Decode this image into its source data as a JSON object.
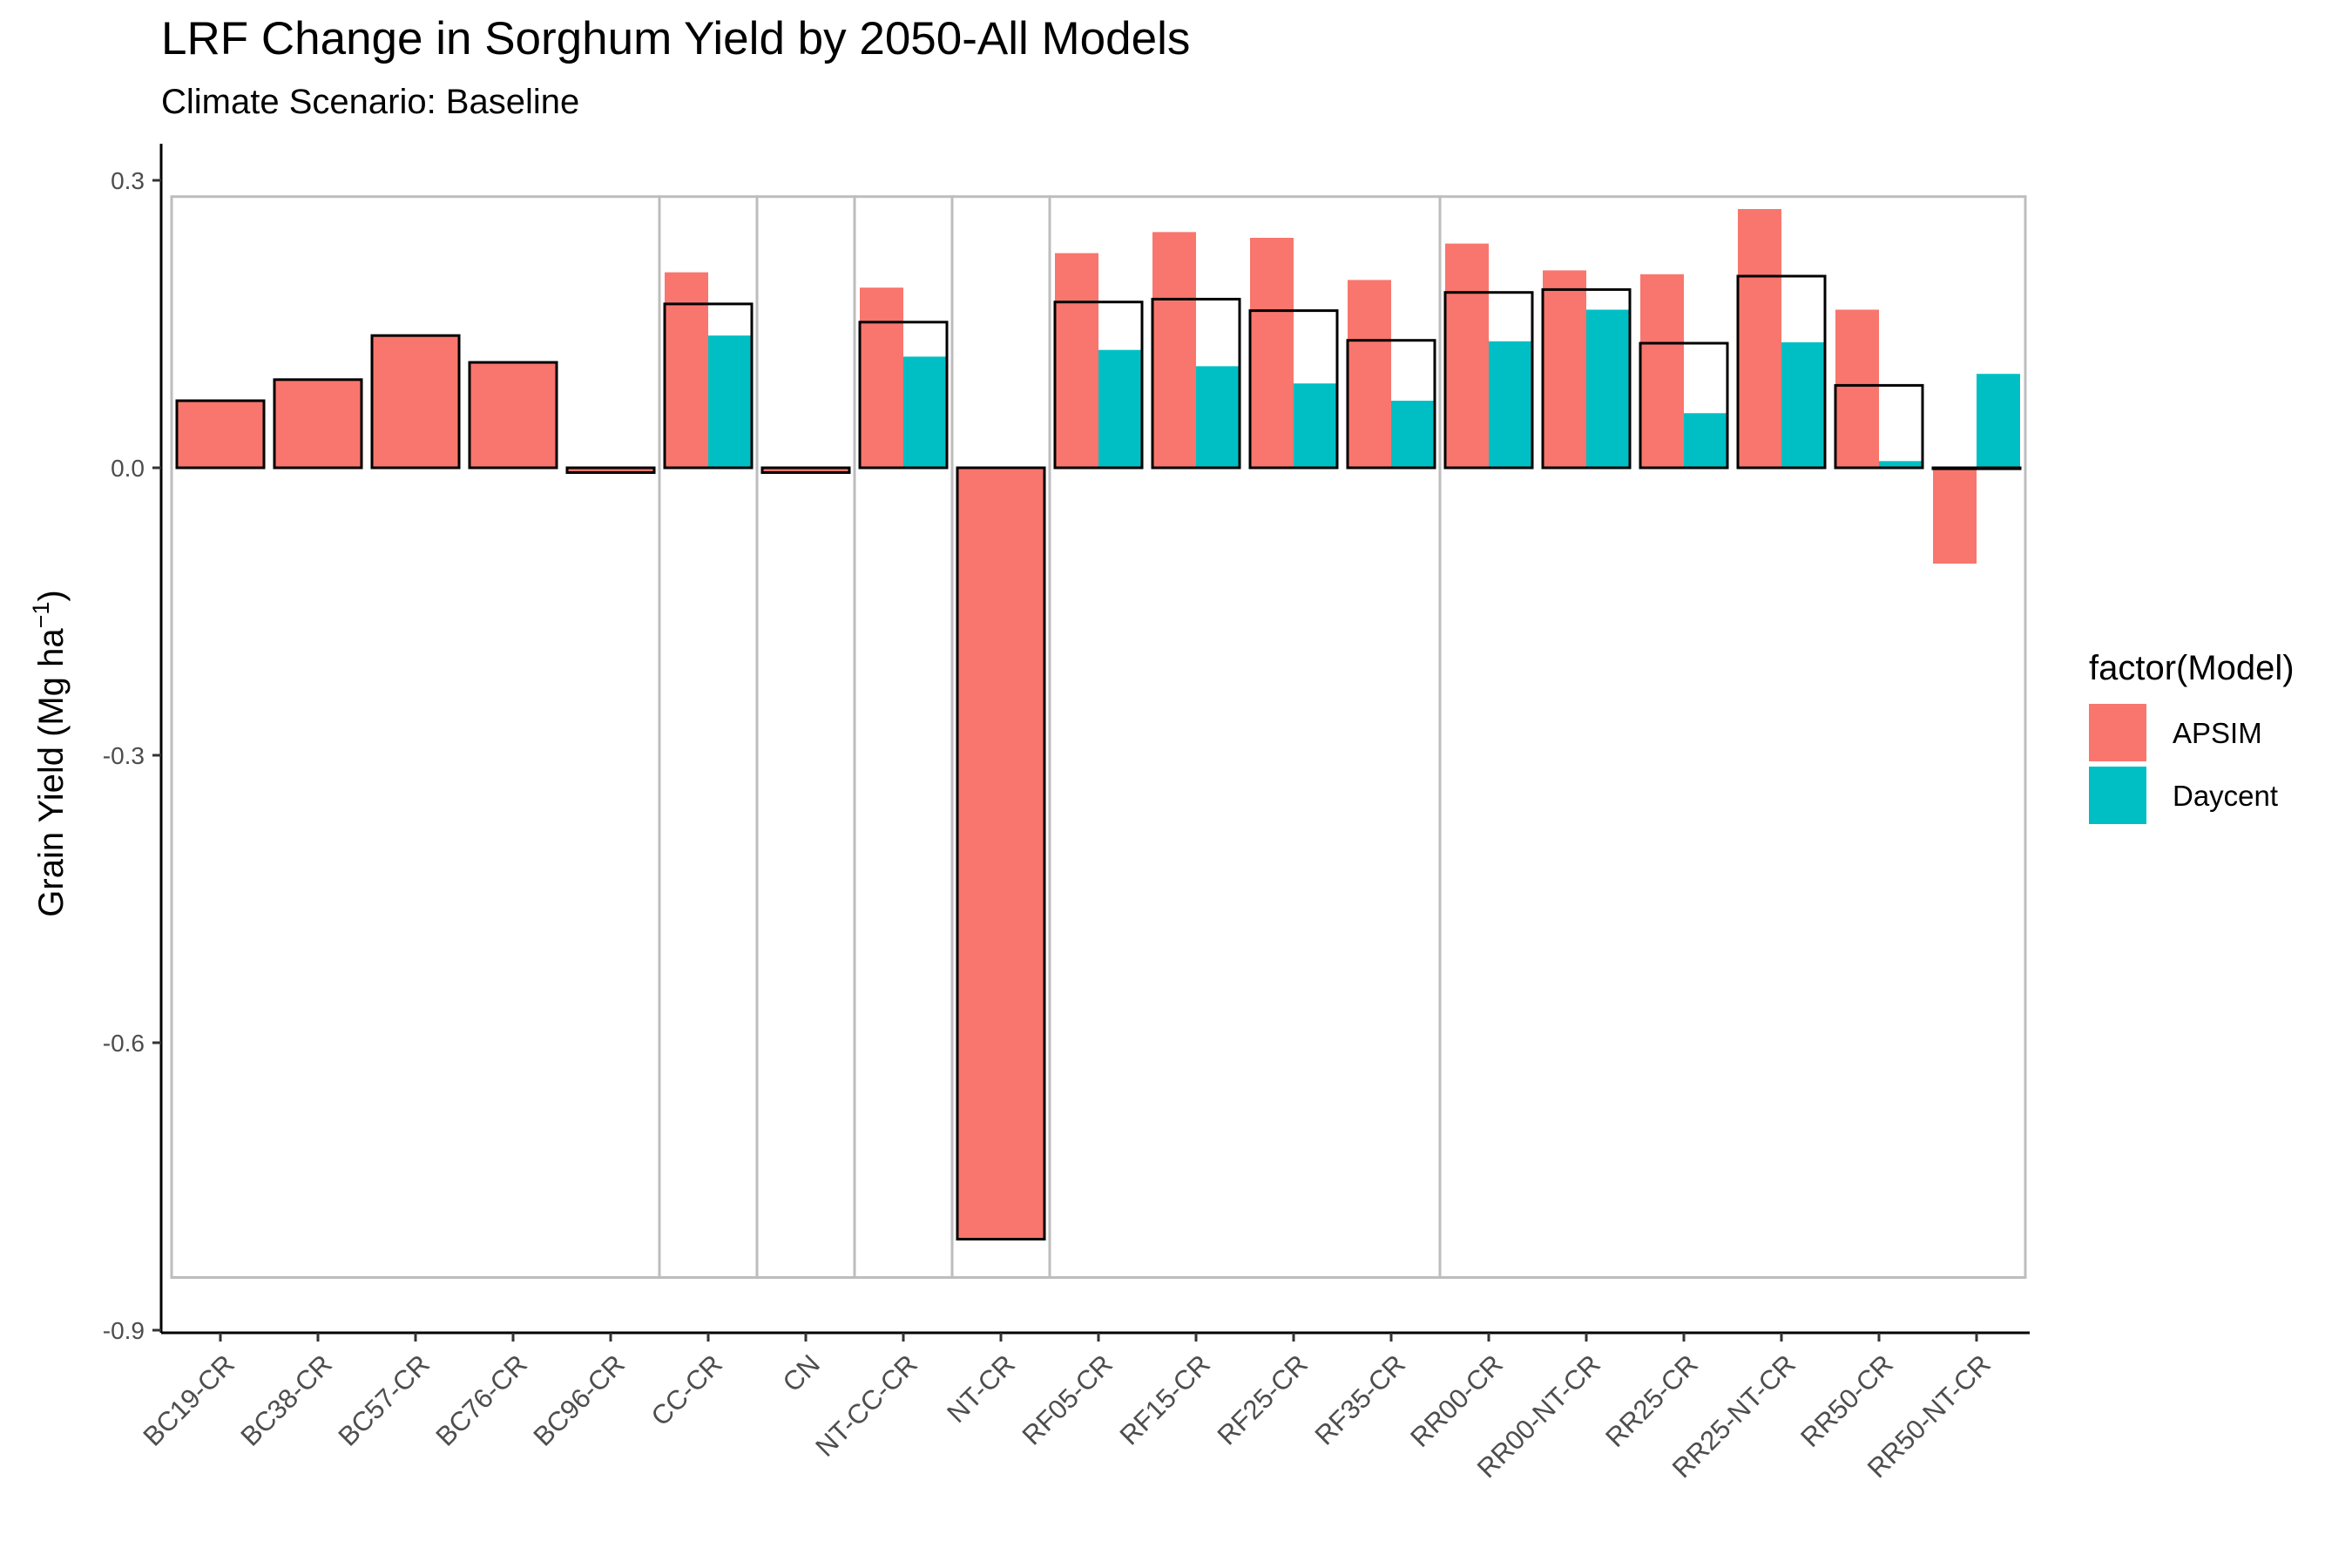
{
  "chart_data": {
    "type": "bar",
    "title": "LRF Change in Sorghum Yield by 2050-All Models",
    "subtitle": "Climate Scenario: Baseline",
    "ylabel": "Grain Yield (Mg ha",
    "ylabel_unit_exp": "−1",
    "ylabel_close": ")",
    "xlabel": "",
    "ylim": [
      -0.9,
      0.3
    ],
    "yticks": [
      -0.9,
      -0.6,
      -0.3,
      0.0,
      0.3
    ],
    "ytick_labels": [
      "-0.9",
      "-0.6",
      "-0.3",
      "0.0",
      "0.3"
    ],
    "categories": [
      "BC19-CR",
      "BC38-CR",
      "BC57-CR",
      "BC76-CR",
      "BC96-CR",
      "CC-CR",
      "CN",
      "NT-CC-CR",
      "NT-CR",
      "RF05-CR",
      "RF15-CR",
      "RF25-CR",
      "RF35-CR",
      "RR00-CR",
      "RR00-NT-CR",
      "RR25-CR",
      "RR25-NT-CR",
      "RR50-CR",
      "RR50-NT-CR"
    ],
    "series": [
      {
        "name": "APSIM",
        "color": "#F8766D",
        "values": [
          0.07,
          0.092,
          0.138,
          0.11,
          -0.005,
          0.204,
          -0.005,
          0.188,
          -0.805,
          0.224,
          0.246,
          0.24,
          0.196,
          0.234,
          0.206,
          0.202,
          0.27,
          0.165,
          -0.1
        ]
      },
      {
        "name": "Daycent",
        "color": "#00BFC4",
        "values": [
          null,
          null,
          null,
          null,
          null,
          0.138,
          null,
          0.116,
          null,
          0.123,
          0.106,
          0.088,
          0.07,
          0.132,
          0.165,
          0.057,
          0.131,
          0.007,
          0.098
        ]
      }
    ],
    "mean_outline": [
      0.07,
      0.092,
      0.138,
      0.11,
      -0.005,
      0.171,
      -0.005,
      0.152,
      -0.805,
      0.173,
      0.176,
      0.164,
      0.133,
      0.183,
      0.186,
      0.13,
      0.2,
      0.086,
      -0.001
    ],
    "group_boxes": [
      [
        0,
        4
      ],
      [
        5,
        5
      ],
      [
        6,
        6
      ],
      [
        7,
        7
      ],
      [
        8,
        8
      ],
      [
        9,
        12
      ],
      [
        13,
        18
      ]
    ],
    "group_box_range": [
      -0.845,
      0.283
    ],
    "legend": {
      "title": "factor(Model)",
      "position": "right"
    },
    "grid": false
  }
}
